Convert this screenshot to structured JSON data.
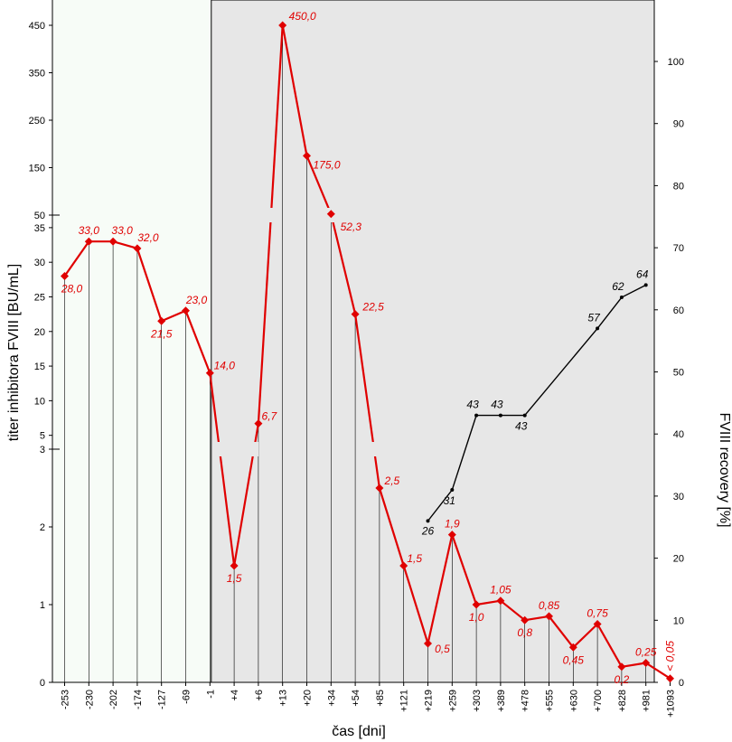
{
  "chart_data": {
    "type": "line",
    "xlabel": "čas [dni]",
    "ylabel": "titer inhibitora FVIII [BU/mL]",
    "y2label": "FVIII recovery [%]",
    "categories": [
      "-253",
      "-230",
      "-202",
      "-174",
      "-127",
      "-69",
      "-1",
      "+4",
      "+6",
      "+13",
      "+20",
      "+34",
      "+54",
      "+85",
      "+121",
      "+219",
      "+259",
      "+303",
      "+389",
      "+478",
      "+555",
      "+630",
      "+700",
      "+828",
      "+981",
      "+1093"
    ],
    "y_axis_segments": [
      {
        "range": [
          0,
          3
        ],
        "ticks": [
          "0",
          "1",
          "2",
          "3"
        ]
      },
      {
        "range": [
          3,
          35
        ],
        "ticks": [
          "5",
          "10",
          "15",
          "20",
          "25",
          "30",
          "35"
        ]
      },
      {
        "range": [
          50,
          450
        ],
        "ticks": [
          "50",
          "150",
          "250",
          "350",
          "450"
        ]
      }
    ],
    "y2_range": [
      0,
      100
    ],
    "y2_ticks": [
      "0",
      "10",
      "20",
      "30",
      "40",
      "50",
      "60",
      "70",
      "80",
      "90",
      "100"
    ],
    "shaded_region": {
      "from": "-1",
      "to": "+981"
    },
    "series": [
      {
        "color": "#e00000",
        "values": [
          28.0,
          33.0,
          33.0,
          32.0,
          21.5,
          23.0,
          14.0,
          1.5,
          6.7,
          450.0,
          175.0,
          52.3,
          22.5,
          2.5,
          1.5,
          0.5,
          1.9,
          1.0,
          1.05,
          0.8,
          0.85,
          0.45,
          0.75,
          0.2,
          0.25,
          0.05
        ],
        "labels": [
          "28,0",
          "33,0",
          "33,0",
          "32,0",
          "21,5",
          "23,0",
          "14,0",
          "1,5",
          "6,7",
          "450,0",
          "175,0",
          "52,3",
          "22,5",
          "2,5",
          "1,5",
          "0,5",
          "1,9",
          "1,0",
          "1,05",
          "0,8",
          "0,85",
          "0,45",
          "0,75",
          "0,2",
          "0,25",
          "< 0,05"
        ]
      },
      {
        "color": "#000000",
        "axis": "right",
        "points": [
          {
            "x": "+219",
            "y": 26,
            "label": "26"
          },
          {
            "x": "+259",
            "y": 31,
            "label": "31"
          },
          {
            "x": "+303",
            "y": 43,
            "label": "43"
          },
          {
            "x": "+389",
            "y": 43,
            "label": "43"
          },
          {
            "x": "+478",
            "y": 43,
            "label": "43"
          },
          {
            "x": "+700",
            "y": 57,
            "label": "57"
          },
          {
            "x": "+828",
            "y": 62,
            "label": "62"
          },
          {
            "x": "+981",
            "y": 64,
            "label": "64"
          }
        ]
      }
    ]
  }
}
